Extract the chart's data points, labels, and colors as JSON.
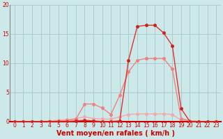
{
  "xlabel": "Vent moyen/en rafales ( km/h )",
  "xlim": [
    -0.5,
    23.5
  ],
  "ylim": [
    0,
    20
  ],
  "xticks": [
    0,
    1,
    2,
    3,
    4,
    5,
    6,
    7,
    8,
    9,
    10,
    11,
    12,
    13,
    14,
    15,
    16,
    17,
    18,
    19,
    20,
    21,
    22,
    23
  ],
  "yticks": [
    0,
    5,
    10,
    15,
    20
  ],
  "bg_color": "#cce8e8",
  "grid_color": "#aacccc",
  "line1_x": [
    0,
    1,
    2,
    3,
    4,
    5,
    6,
    7,
    8,
    9,
    10,
    11,
    12,
    13,
    14,
    15,
    16,
    17,
    18,
    19,
    20,
    21,
    22,
    23
  ],
  "line1_y": [
    0,
    0,
    0,
    0,
    0.1,
    0.2,
    0.3,
    0.5,
    0.8,
    0.5,
    0.4,
    0.4,
    0.8,
    1.2,
    1.3,
    1.3,
    1.3,
    1.3,
    1.2,
    0.2,
    0.1,
    0.0,
    0.0,
    0.0
  ],
  "line2_x": [
    0,
    1,
    2,
    3,
    4,
    5,
    6,
    7,
    8,
    9,
    10,
    11,
    12,
    13,
    14,
    15,
    16,
    17,
    18,
    19,
    20,
    21,
    22,
    23
  ],
  "line2_y": [
    0,
    0,
    0,
    0,
    0,
    0.1,
    0.2,
    0.4,
    3.0,
    3.0,
    2.3,
    1.2,
    4.5,
    8.5,
    10.5,
    10.8,
    10.8,
    10.8,
    9.0,
    0.5,
    0.1,
    0.0,
    0.0,
    0.0
  ],
  "line3_x": [
    0,
    1,
    2,
    3,
    4,
    5,
    6,
    7,
    8,
    9,
    10,
    11,
    12,
    13,
    14,
    15,
    16,
    17,
    18,
    19,
    20,
    21,
    22,
    23
  ],
  "line3_y": [
    0,
    0,
    0,
    0,
    0,
    0,
    0,
    0.1,
    0.2,
    0.1,
    0.0,
    0.0,
    0.1,
    10.5,
    16.3,
    16.5,
    16.5,
    15.2,
    13.0,
    2.2,
    0.0,
    0.0,
    0.0,
    0.0
  ],
  "line1_color": "#f4a8a8",
  "line2_color": "#f08080",
  "line3_color": "#e03030",
  "marker1_color": "#f4a8a8",
  "marker2_color": "#f08080",
  "marker3_color": "#cc2020",
  "linewidth": 1.0,
  "markersize": 2.5,
  "tick_label_color": "#cc0000",
  "xlabel_color": "#cc0000",
  "xlabel_fontsize": 7,
  "tick_fontsize": 5.5,
  "left_spine_color": "#888888"
}
